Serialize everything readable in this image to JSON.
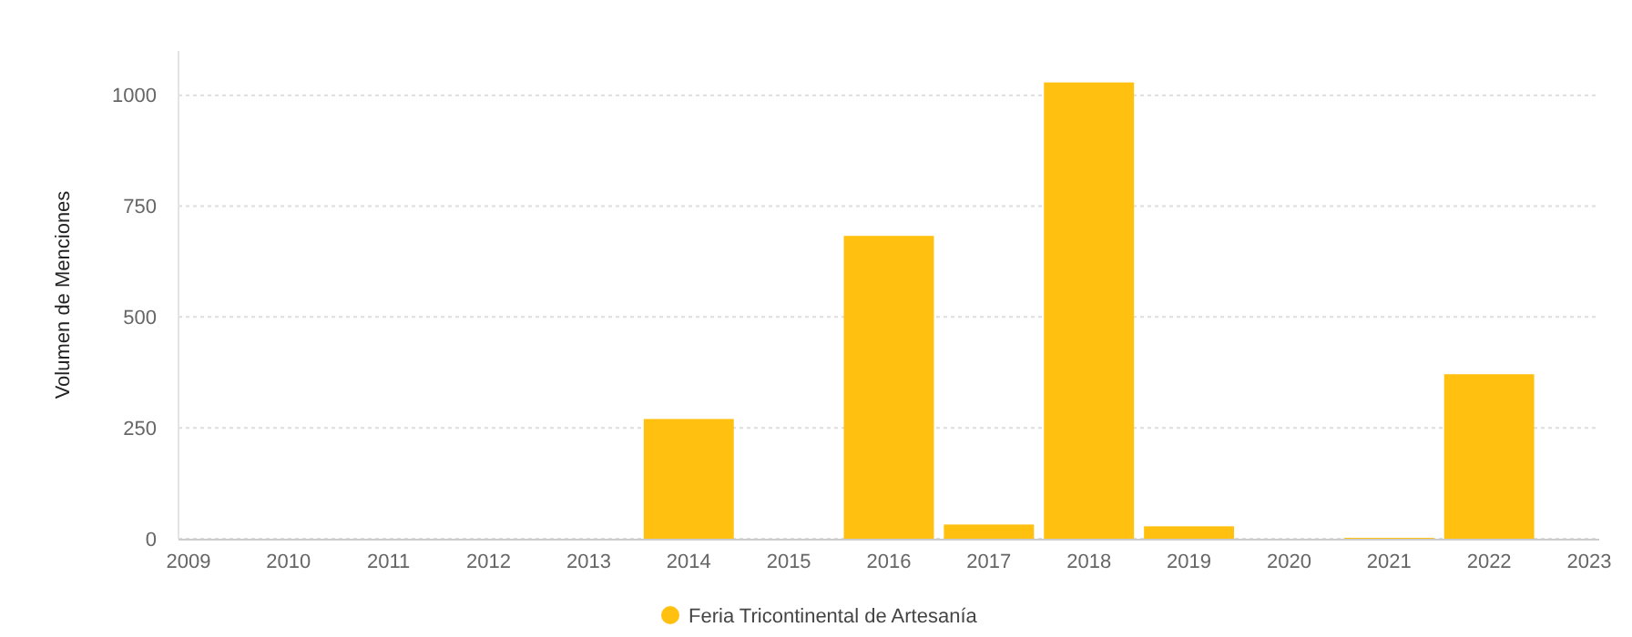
{
  "chart_data": {
    "type": "bar",
    "ylabel": "Volumen de Menciones",
    "x": [
      2014,
      2016,
      2017,
      2018,
      2019,
      2021,
      2022
    ],
    "series": [
      {
        "name": "Feria Tricontinental de Artesanía",
        "color": "#ffc010",
        "values": [
          270,
          683,
          32,
          1029,
          28,
          2,
          371
        ]
      }
    ],
    "xlim": [
      2008.9,
      2023.1
    ],
    "xticks": [
      2009,
      2010,
      2011,
      2012,
      2013,
      2014,
      2015,
      2016,
      2017,
      2018,
      2019,
      2020,
      2021,
      2022,
      2023
    ],
    "ylim": [
      0,
      1100
    ],
    "yticks": [
      0,
      250,
      500,
      750,
      1000
    ],
    "grid": "y",
    "legend": "bottom"
  }
}
